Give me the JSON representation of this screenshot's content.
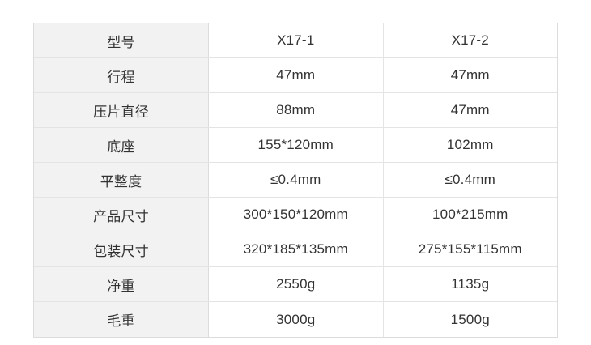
{
  "spec_table": {
    "rows": [
      {
        "label": "型号",
        "model_1": "X17-1",
        "model_2": "X17-2"
      },
      {
        "label": "行程",
        "model_1": "47mm",
        "model_2": "47mm"
      },
      {
        "label": "压片直径",
        "model_1": "88mm",
        "model_2": "47mm"
      },
      {
        "label": "底座",
        "model_1": "155*120mm",
        "model_2": "102mm"
      },
      {
        "label": "平整度",
        "model_1": "≤0.4mm",
        "model_2": "≤0.4mm"
      },
      {
        "label": "产品尺寸",
        "model_1": "300*150*120mm",
        "model_2": "100*215mm"
      },
      {
        "label": "包装尺寸",
        "model_1": "320*185*135mm",
        "model_2": "275*155*115mm"
      },
      {
        "label": "净重",
        "model_1": "2550g",
        "model_2": "1135g"
      },
      {
        "label": "毛重",
        "model_1": "3000g",
        "model_2": "1500g"
      }
    ]
  },
  "colors": {
    "page_bg": "#ffffff",
    "label_column_bg": "#f2f2f2",
    "border_outer": "#dcdcdc",
    "border_inner": "#e4e4e4",
    "text": "#333333"
  }
}
